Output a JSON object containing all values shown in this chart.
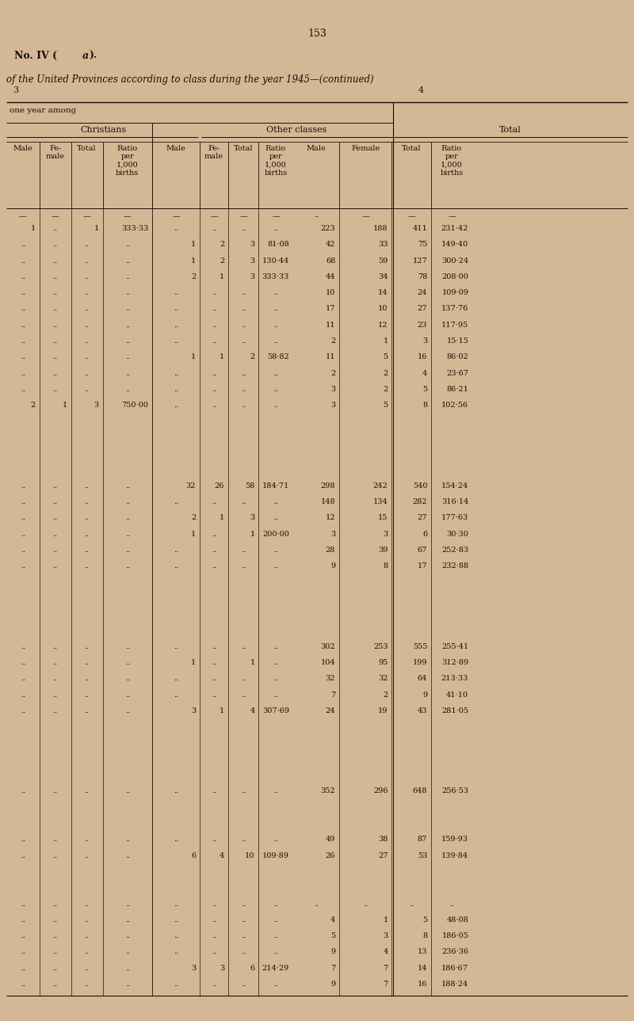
{
  "page_number": "153",
  "title_line1": "No. IV (a).",
  "title_line2": "of the United Provinces according to class during the year 1945—(continued)",
  "bg_color": "#d4b896",
  "text_color": "#1a0f05",
  "rows": [
    [
      "1",
      "..",
      "1",
      "333·33",
      "..",
      "..",
      "..",
      "..",
      "223",
      "188",
      "411",
      "231·42"
    ],
    [
      "..",
      "..",
      "..",
      "..",
      "1",
      "2",
      "3",
      "81·08",
      "42",
      "33",
      "75",
      "149·40"
    ],
    [
      "..",
      "..",
      "..",
      "..",
      "1",
      "2",
      "3",
      "130·44",
      "68",
      "59",
      "127",
      "300·24"
    ],
    [
      "..",
      "..",
      "..",
      "..",
      "2",
      "1",
      "3",
      "333·33",
      "44",
      "34",
      "78",
      "208·00"
    ],
    [
      "..",
      "..",
      "..",
      "..",
      "..",
      "..",
      "..",
      "..",
      "10",
      "14",
      "24",
      "109·09"
    ],
    [
      "..",
      "..",
      "..",
      "..",
      "..",
      "..",
      "..",
      "..",
      "17",
      "10",
      "27",
      "137·76"
    ],
    [
      "..",
      "..",
      "..",
      "..",
      "..",
      "..",
      "..",
      "..",
      "11",
      "12",
      "23",
      "117·95"
    ],
    [
      "..",
      "..",
      "..",
      "..",
      "..",
      "..",
      "..",
      "..",
      "2",
      "1",
      "3",
      "15·15"
    ],
    [
      "..",
      "..",
      "..",
      "..",
      "1",
      "1",
      "2",
      "58·82",
      "11",
      "5",
      "16",
      "86·02"
    ],
    [
      "..",
      "..",
      "..",
      "..",
      "..",
      "..",
      "..",
      "..",
      "2",
      "2",
      "4",
      "23·67"
    ],
    [
      "..",
      "..",
      "..",
      "..",
      "..",
      "..",
      "..",
      "..",
      "3",
      "2",
      "5",
      "86·21"
    ],
    [
      "2",
      "1",
      "3",
      "750·00",
      "..",
      "..",
      "..",
      "..",
      "3",
      "5",
      "8",
      "102·56"
    ],
    [
      "",
      "",
      "",
      "",
      "",
      "",
      "",
      "",
      "",
      "",
      "",
      ""
    ],
    [
      "",
      "",
      "",
      "",
      "",
      "",
      "",
      "",
      "",
      "",
      "",
      ""
    ],
    [
      "..",
      "..",
      "..",
      "..",
      "32",
      "26",
      "58",
      "184·71",
      "298",
      "242",
      "540",
      "154·24"
    ],
    [
      "..",
      "..",
      "..",
      "..",
      "..",
      "..",
      "..",
      "..",
      "148",
      "134",
      "282",
      "316·14"
    ],
    [
      "..",
      "..",
      "..",
      "..",
      "2",
      "1",
      "3",
      "..",
      "12",
      "15",
      "27",
      "177·63"
    ],
    [
      "..",
      "..",
      "..",
      "..",
      "1",
      "..",
      "1",
      "200·00",
      "3",
      "3",
      "6",
      "30·30"
    ],
    [
      "..",
      "..",
      "..",
      "..",
      "..",
      "..",
      "..",
      "..",
      "28",
      "39",
      "67",
      "252·83"
    ],
    [
      "..",
      "..",
      "..",
      "..",
      "..",
      "..",
      "..",
      "..",
      "9",
      "8",
      "17",
      "232·88"
    ],
    [
      "",
      "",
      "",
      "",
      "",
      "",
      "",
      "",
      "",
      "",
      "",
      ""
    ],
    [
      "",
      "",
      "",
      "",
      "",
      "",
      "",
      "",
      "",
      "",
      "",
      ""
    ],
    [
      "..",
      "..",
      "..",
      "..",
      "..",
      "..",
      "..",
      "..",
      "302",
      "253",
      "555",
      "255·41"
    ],
    [
      "..",
      "..",
      "..",
      "..",
      "1",
      "..",
      "1",
      "..",
      "104",
      "95",
      "199",
      "312·89"
    ],
    [
      "..",
      "..",
      "..",
      "..",
      "..",
      "..",
      "..",
      "..",
      "32",
      "32",
      "64",
      "213·33"
    ],
    [
      "..",
      "..",
      "..",
      "..",
      "..",
      "..",
      "..",
      "..",
      "7",
      "2",
      "9",
      "41·10"
    ],
    [
      "..",
      "..",
      "..",
      "..",
      "3",
      "1",
      "4",
      "307·69",
      "24",
      "19",
      "43",
      "281·05"
    ],
    [
      "",
      "",
      "",
      "",
      "",
      "",
      "",
      "",
      "",
      "",
      "",
      ""
    ],
    [
      "",
      "",
      "",
      "",
      "",
      "",
      "",
      "",
      "",
      "",
      "",
      ""
    ],
    [
      "..",
      "..",
      "..",
      "..",
      "..",
      "..",
      "..",
      "..",
      "352",
      "296",
      "648",
      "256·53"
    ],
    [
      "",
      "",
      "",
      "",
      "",
      "",
      "",
      "",
      "",
      "",
      "",
      ""
    ],
    [
      "..",
      "..",
      "..",
      "..",
      "..",
      "..",
      "..",
      "..",
      "49",
      "38",
      "87",
      "159·93"
    ],
    [
      "..",
      "..",
      "..",
      "..",
      "6",
      "4",
      "10",
      "109·89",
      "26",
      "27",
      "53",
      "139·84"
    ],
    [
      "",
      "",
      "",
      "",
      "",
      "",
      "",
      "",
      "",
      "",
      "",
      ""
    ],
    [
      "..",
      "..",
      "..",
      "..",
      "..",
      "..",
      "..",
      "..",
      "..",
      "..",
      "..",
      ".."
    ],
    [
      "..",
      "..",
      "..",
      "..",
      "..",
      "..",
      "..",
      "..",
      "4",
      "1",
      "5",
      "48·08"
    ],
    [
      "..",
      "..",
      "..",
      "..",
      "..",
      "..",
      "..",
      "..",
      "5",
      "3",
      "8",
      "186·05"
    ],
    [
      "..",
      "..",
      "..",
      "..",
      "..",
      "..",
      "..",
      "..",
      "9",
      "4",
      "13",
      "236·36"
    ],
    [
      "..",
      "..",
      "..",
      "..",
      "3",
      "3",
      "6",
      "214·29",
      "7",
      "7",
      "14",
      "186·67"
    ],
    [
      "..",
      "..",
      "..",
      "..",
      "..",
      "..",
      "..",
      "..",
      "9",
      "7",
      "16",
      "188·24"
    ]
  ]
}
